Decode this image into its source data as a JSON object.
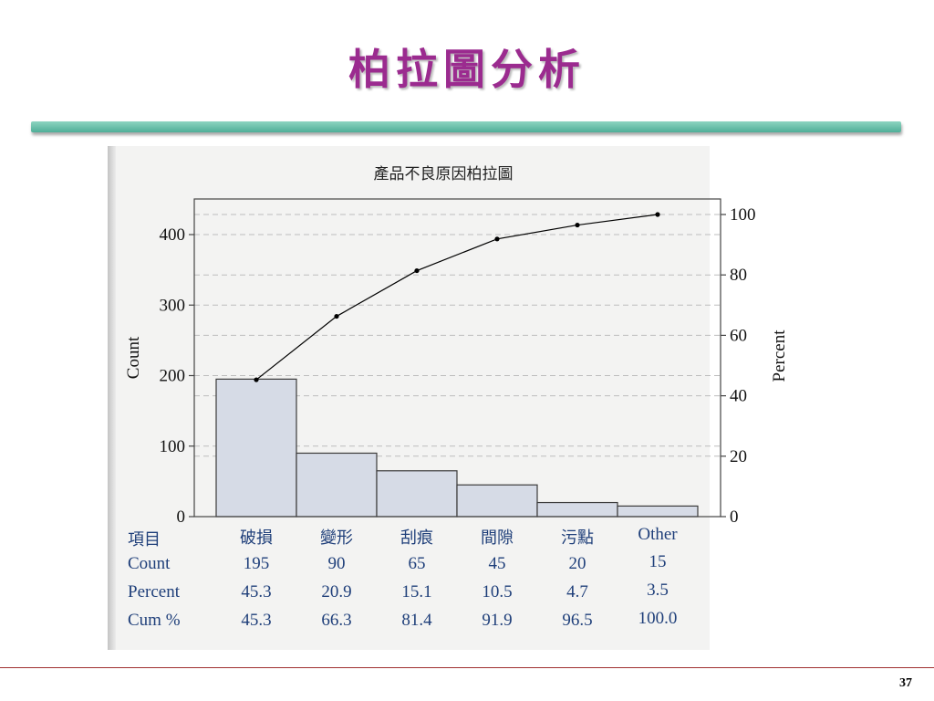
{
  "slide": {
    "title": "柏拉圖分析",
    "page_number": "37"
  },
  "chart_data": {
    "type": "bar",
    "title": "產品不良原因柏拉圖",
    "ylabel": "Count",
    "y2label": "Percent",
    "ylim": [
      0,
      430
    ],
    "y2lim": [
      0,
      100
    ],
    "y_ticks": [
      0,
      100,
      200,
      300,
      400
    ],
    "y2_ticks": [
      0,
      20,
      40,
      60,
      80,
      100
    ],
    "grid": true,
    "categories": [
      "破損",
      "變形",
      "刮痕",
      "間隙",
      "污點",
      "Other"
    ],
    "series": [
      {
        "type": "bar",
        "values": [
          195,
          90,
          65,
          45,
          20,
          15
        ],
        "color": "#d6dbe6"
      },
      {
        "type": "line",
        "axis": "right",
        "values": [
          45.3,
          66.3,
          81.4,
          91.9,
          96.5,
          100.0
        ],
        "color": "#000000"
      }
    ],
    "table": {
      "header_label": "項目",
      "rows": [
        {
          "label": "Count",
          "values": [
            "195",
            "90",
            "65",
            "45",
            "20",
            "15"
          ]
        },
        {
          "label": "Percent",
          "values": [
            "45.3",
            "20.9",
            "15.1",
            "10.5",
            "4.7",
            "3.5"
          ]
        },
        {
          "label": "Cum %",
          "values": [
            "45.3",
            "66.3",
            "81.4",
            "91.9",
            "96.5",
            "100.0"
          ]
        }
      ]
    }
  }
}
